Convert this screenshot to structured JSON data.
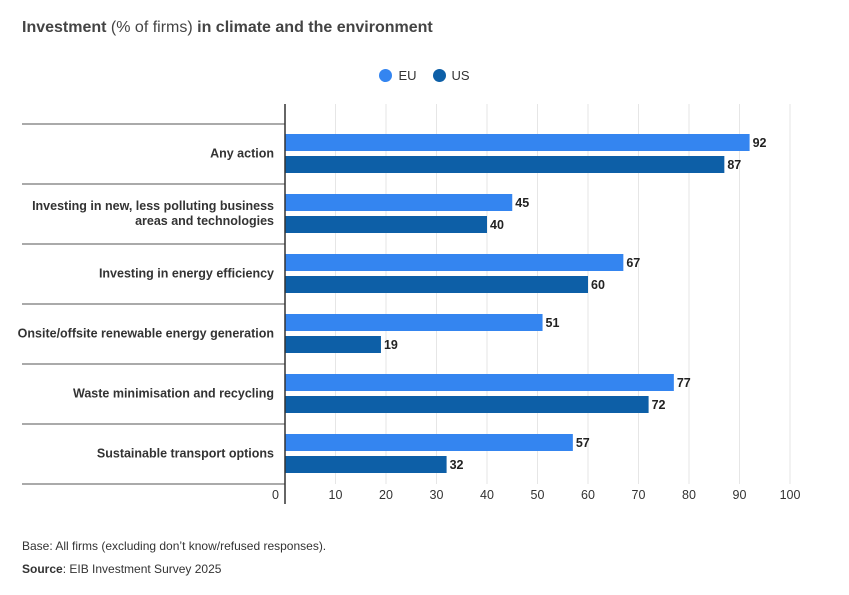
{
  "title": {
    "part1": "Investment",
    "part2": " (% of firms) ",
    "part3": "in climate and the environment"
  },
  "colors": {
    "eu": "#3485f0",
    "us": "#0d5fa7"
  },
  "chart_data": {
    "type": "bar",
    "orientation": "horizontal",
    "categories": [
      "Any action",
      "Investing in new, less polluting business areas and technologies",
      "Investing in energy efficiency",
      "Onsite/offsite renewable energy generation",
      "Waste minimisation and recycling",
      "Sustainable transport options"
    ],
    "series": [
      {
        "name": "EU",
        "values": [
          92,
          45,
          67,
          51,
          77,
          57
        ]
      },
      {
        "name": "US",
        "values": [
          87,
          40,
          60,
          19,
          72,
          32
        ]
      }
    ],
    "xlim": [
      0,
      100
    ],
    "xticks": [
      0,
      10,
      20,
      30,
      40,
      50,
      60,
      70,
      80,
      90,
      100
    ],
    "legend": "top-center",
    "grid": true
  },
  "footnotes": {
    "base": "Base: All firms (excluding don’t know/refused responses).",
    "source_label": "Source",
    "source_text": ": EIB Investment Survey 2025"
  }
}
